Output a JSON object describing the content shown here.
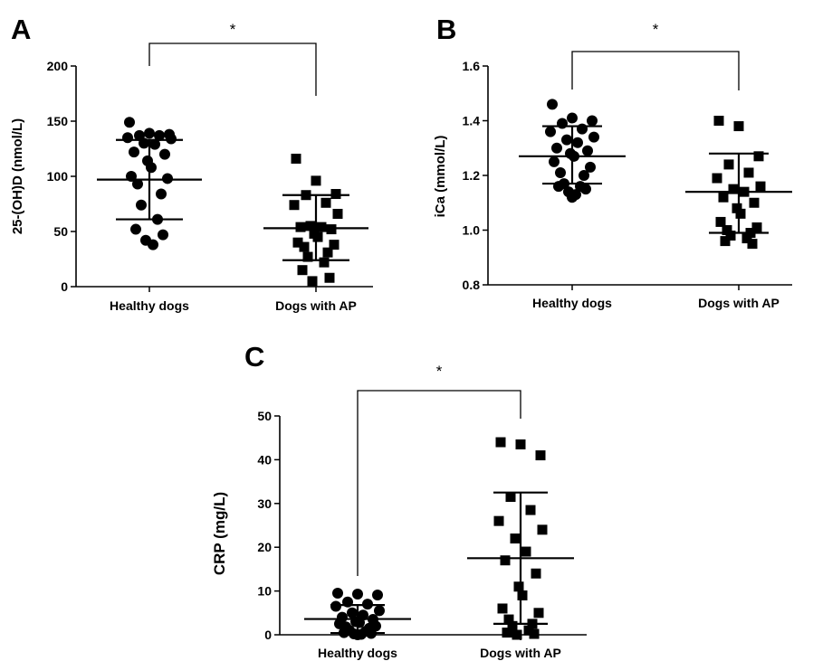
{
  "chart_data": [
    {
      "panel": "A",
      "type": "scatter",
      "ylabel": "25-(OH)D (nmol/L)",
      "xlabel": "",
      "ylim": [
        0,
        200
      ],
      "yticks": [
        0,
        50,
        100,
        150,
        200
      ],
      "categories": [
        "Healthy dogs",
        "Dogs with AP"
      ],
      "significance": "*",
      "groups": [
        {
          "name": "Healthy dogs",
          "marker": "circle",
          "mean": 97,
          "sd_upper": 133,
          "sd_lower": 61,
          "points": [
            149,
            139,
            138,
            137,
            137,
            135,
            134,
            130,
            129,
            122,
            120,
            114,
            108,
            100,
            98,
            93,
            84,
            74,
            61,
            52,
            47,
            42,
            38
          ]
        },
        {
          "name": "Dogs with AP",
          "marker": "square",
          "mean": 53,
          "sd_upper": 83,
          "sd_lower": 24,
          "points": [
            116,
            96,
            84,
            83,
            76,
            74,
            66,
            55,
            54,
            54,
            52,
            48,
            45,
            40,
            38,
            36,
            31,
            27,
            22,
            15,
            8,
            5
          ]
        }
      ]
    },
    {
      "panel": "B",
      "type": "scatter",
      "ylabel": "iCa (mmol/L)",
      "xlabel": "",
      "ylim": [
        0.8,
        1.6
      ],
      "yticks": [
        "0.8",
        "1.0",
        "1.2",
        "1.4",
        "1.6"
      ],
      "categories": [
        "Healthy dogs",
        "Dogs with AP"
      ],
      "significance": "*",
      "groups": [
        {
          "name": "Healthy dogs",
          "marker": "circle",
          "mean": 1.27,
          "sd_upper": 1.38,
          "sd_lower": 1.17,
          "points": [
            1.46,
            1.41,
            1.4,
            1.39,
            1.37,
            1.36,
            1.34,
            1.33,
            1.32,
            1.3,
            1.29,
            1.28,
            1.27,
            1.25,
            1.23,
            1.21,
            1.2,
            1.17,
            1.16,
            1.16,
            1.15,
            1.14,
            1.13,
            1.12
          ]
        },
        {
          "name": "Dogs with AP",
          "marker": "square",
          "mean": 1.14,
          "sd_upper": 1.28,
          "sd_lower": 0.99,
          "points": [
            1.4,
            1.38,
            1.27,
            1.24,
            1.21,
            1.19,
            1.16,
            1.15,
            1.14,
            1.12,
            1.1,
            1.08,
            1.06,
            1.03,
            1.01,
            1.0,
            0.99,
            0.98,
            0.97,
            0.96,
            0.95
          ]
        }
      ]
    },
    {
      "panel": "C",
      "type": "scatter",
      "ylabel": "CRP (mg/L)",
      "xlabel": "",
      "ylim": [
        0,
        50
      ],
      "yticks": [
        0,
        10,
        20,
        30,
        40,
        50
      ],
      "categories": [
        "Healthy dogs",
        "Dogs with AP"
      ],
      "significance": "*",
      "groups": [
        {
          "name": "Healthy dogs",
          "marker": "circle",
          "mean": 3.6,
          "sd_upper": 6.8,
          "sd_lower": 0.4,
          "points": [
            9.5,
            9.3,
            9.1,
            7.5,
            7.0,
            6.5,
            5.5,
            5.0,
            4.5,
            4.0,
            3.5,
            3.0,
            2.8,
            2.5,
            2.0,
            1.8,
            1.5,
            1.0,
            0.8,
            0.5,
            0.3,
            0.2,
            0.1,
            0.0
          ]
        },
        {
          "name": "Dogs with AP",
          "marker": "square",
          "mean": 17.5,
          "sd_upper": 32.5,
          "sd_lower": 2.5,
          "points": [
            44,
            43.5,
            41,
            31.5,
            28.5,
            26,
            24,
            22,
            19,
            17,
            14,
            11,
            9,
            6,
            5,
            3.5,
            2.5,
            2,
            1,
            0.5,
            0.2,
            0
          ]
        }
      ]
    }
  ]
}
